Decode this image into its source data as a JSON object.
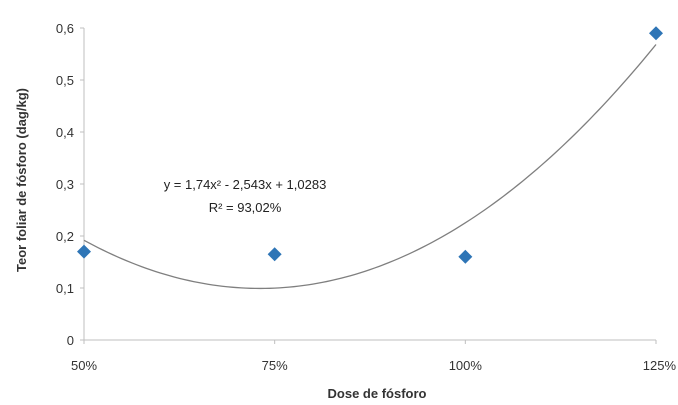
{
  "chart_data": {
    "type": "scatter",
    "title": "",
    "xlabel": "Dose de fósforo",
    "ylabel": "Teor foliar de fósforo (dag/kg)",
    "x_ticks": [
      "50%",
      "75%",
      "100%",
      "125%"
    ],
    "y_ticks": [
      "0",
      "0,1",
      "0,2",
      "0,3",
      "0,4",
      "0,5",
      "0,6"
    ],
    "xlim": [
      0.5,
      1.25
    ],
    "ylim": [
      0,
      0.6
    ],
    "grid": false,
    "series": [
      {
        "marker": "diamond",
        "color": "#2E75B6",
        "points": [
          {
            "x": 0.5,
            "y": 0.17
          },
          {
            "x": 0.75,
            "y": 0.165
          },
          {
            "x": 1.0,
            "y": 0.16
          },
          {
            "x": 1.25,
            "y": 0.59
          }
        ]
      }
    ],
    "trendline": {
      "type": "polynomial",
      "coefficients": [
        1.74,
        -2.543,
        1.0283
      ],
      "color": "#7f7f7f",
      "equation_label": "y = 1,74x² - 2,543x + 1,0283",
      "r2_label": "R² = 93,02%"
    }
  }
}
